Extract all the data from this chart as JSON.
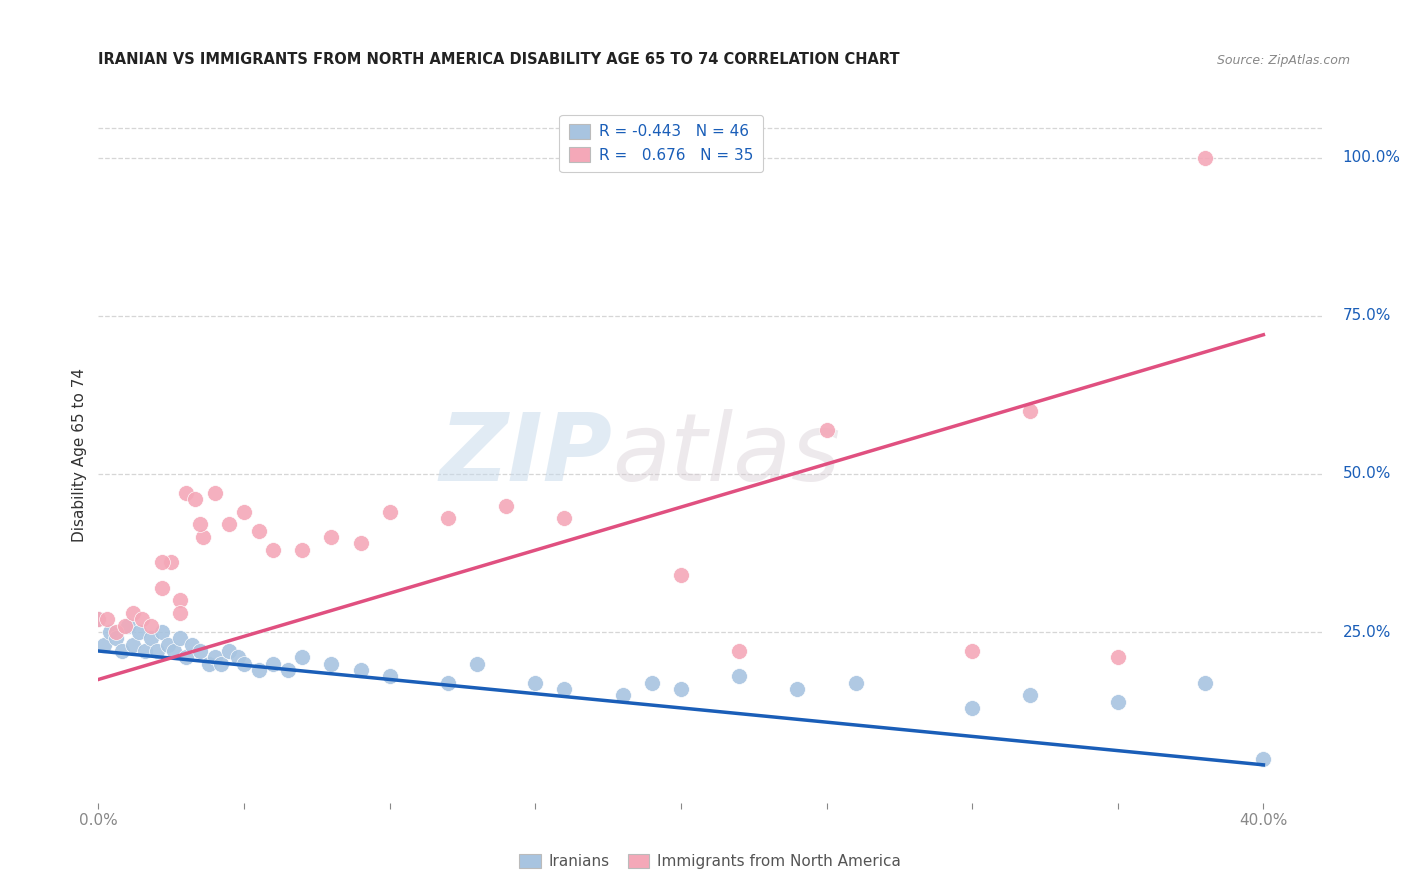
{
  "title": "IRANIAN VS IMMIGRANTS FROM NORTH AMERICA DISABILITY AGE 65 TO 74 CORRELATION CHART",
  "source": "Source: ZipAtlas.com",
  "ylabel": "Disability Age 65 to 74",
  "ylabel_right_labels": [
    "100.0%",
    "75.0%",
    "50.0%",
    "25.0%"
  ],
  "ylabel_right_values": [
    1.0,
    0.75,
    0.5,
    0.25
  ],
  "xlim": [
    0.0,
    0.42
  ],
  "ylim": [
    -0.02,
    1.08
  ],
  "legend_R_blue": "-0.443",
  "legend_N_blue": "46",
  "legend_R_pink": "0.676",
  "legend_N_pink": "35",
  "blue_color": "#a8c4e0",
  "pink_color": "#f4a8b8",
  "blue_line_color": "#1a5eb8",
  "pink_line_color": "#e05080",
  "watermark_zip": "ZIP",
  "watermark_atlas": "atlas",
  "iranians_scatter_x": [
    0.0,
    0.002,
    0.004,
    0.006,
    0.008,
    0.01,
    0.012,
    0.014,
    0.016,
    0.018,
    0.02,
    0.022,
    0.024,
    0.026,
    0.028,
    0.03,
    0.032,
    0.035,
    0.038,
    0.04,
    0.042,
    0.045,
    0.048,
    0.05,
    0.055,
    0.06,
    0.065,
    0.07,
    0.08,
    0.09,
    0.1,
    0.12,
    0.13,
    0.15,
    0.16,
    0.18,
    0.19,
    0.2,
    0.22,
    0.24,
    0.26,
    0.3,
    0.32,
    0.35,
    0.38,
    0.4
  ],
  "iranians_scatter_y": [
    0.27,
    0.23,
    0.25,
    0.24,
    0.22,
    0.26,
    0.23,
    0.25,
    0.22,
    0.24,
    0.22,
    0.25,
    0.23,
    0.22,
    0.24,
    0.21,
    0.23,
    0.22,
    0.2,
    0.21,
    0.2,
    0.22,
    0.21,
    0.2,
    0.19,
    0.2,
    0.19,
    0.21,
    0.2,
    0.19,
    0.18,
    0.17,
    0.2,
    0.17,
    0.16,
    0.15,
    0.17,
    0.16,
    0.18,
    0.16,
    0.17,
    0.13,
    0.15,
    0.14,
    0.17,
    0.05
  ],
  "immigrants_scatter_x": [
    0.0,
    0.003,
    0.006,
    0.009,
    0.012,
    0.015,
    0.018,
    0.022,
    0.025,
    0.028,
    0.03,
    0.033,
    0.036,
    0.04,
    0.045,
    0.05,
    0.055,
    0.06,
    0.07,
    0.08,
    0.09,
    0.1,
    0.12,
    0.14,
    0.16,
    0.2,
    0.22,
    0.25,
    0.3,
    0.32,
    0.35,
    0.38,
    0.022,
    0.028,
    0.035
  ],
  "immigrants_scatter_y": [
    0.27,
    0.27,
    0.25,
    0.26,
    0.28,
    0.27,
    0.26,
    0.32,
    0.36,
    0.3,
    0.47,
    0.46,
    0.4,
    0.47,
    0.42,
    0.44,
    0.41,
    0.38,
    0.38,
    0.4,
    0.39,
    0.44,
    0.43,
    0.45,
    0.43,
    0.34,
    0.22,
    0.57,
    0.22,
    0.6,
    0.21,
    1.0,
    0.36,
    0.28,
    0.42
  ],
  "blue_trend_x": [
    0.0,
    0.4
  ],
  "blue_trend_y": [
    0.22,
    0.04
  ],
  "pink_trend_x": [
    0.0,
    0.4
  ],
  "pink_trend_y": [
    0.175,
    0.72
  ]
}
